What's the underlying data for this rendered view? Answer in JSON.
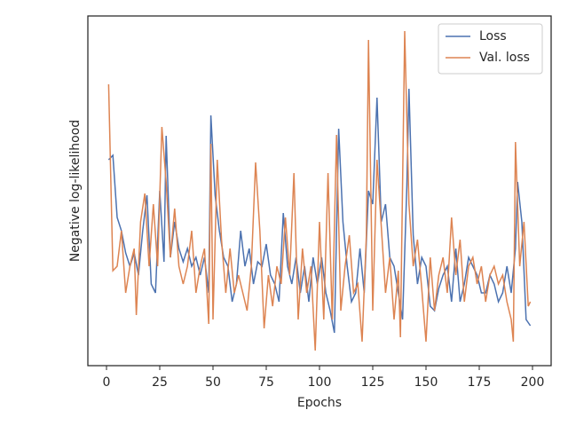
{
  "chart_data": {
    "type": "line",
    "xlabel": "Epochs",
    "ylabel": "Negative log-likelihood",
    "xlim": [
      -8.75,
      208.75
    ],
    "xticks": [
      0,
      25,
      50,
      75,
      100,
      125,
      150,
      175,
      200
    ],
    "ylim": [
      0,
      394
    ],
    "legend": "upper right",
    "series": [
      {
        "name": "Loss",
        "color": "#4c72b0",
        "x": [
          1,
          3,
          5,
          7,
          9,
          11,
          13,
          15,
          17,
          19,
          21,
          23,
          25,
          27,
          28,
          30,
          32,
          34,
          36,
          38,
          40,
          42,
          44,
          46,
          48,
          49,
          51,
          53,
          55,
          57,
          59,
          61,
          63,
          65,
          67,
          69,
          71,
          73,
          75,
          77,
          79,
          81,
          83,
          85,
          87,
          89,
          91,
          93,
          95,
          97,
          99,
          101,
          103,
          105,
          107,
          109,
          111,
          113,
          115,
          117,
          119,
          121,
          123,
          125,
          127,
          129,
          131,
          133,
          135,
          137,
          139,
          141,
          142,
          144,
          146,
          148,
          150,
          152,
          154,
          156,
          158,
          160,
          162,
          164,
          166,
          168,
          170,
          172,
          174,
          176,
          178,
          180,
          182,
          184,
          186,
          188,
          190,
          192,
          193,
          195,
          197,
          199
        ],
        "values": [
          232,
          237,
          167,
          152,
          127,
          112,
          127,
          102,
          152,
          192,
          92,
          82,
          197,
          117,
          259,
          122,
          162,
          132,
          117,
          132,
          112,
          122,
          102,
          122,
          82,
          282,
          192,
          152,
          122,
          112,
          72,
          92,
          152,
          112,
          132,
          92,
          117,
          112,
          137,
          102,
          92,
          72,
          172,
          112,
          92,
          122,
          82,
          112,
          72,
          122,
          92,
          122,
          82,
          62,
          37,
          267,
          162,
          112,
          72,
          82,
          132,
          82,
          197,
          182,
          302,
          162,
          182,
          122,
          112,
          82,
          52,
          202,
          312,
          147,
          92,
          122,
          112,
          67,
          62,
          87,
          102,
          112,
          72,
          132,
          72,
          92,
          122,
          112,
          102,
          82,
          82,
          102,
          92,
          72,
          82,
          112,
          82,
          132,
          207,
          162,
          52,
          45
        ]
      },
      {
        "name": "Val. loss",
        "color": "#dd8452",
        "x": [
          1,
          3,
          5,
          7,
          9,
          11,
          13,
          14,
          16,
          18,
          20,
          22,
          24,
          26,
          28,
          30,
          32,
          34,
          36,
          38,
          40,
          42,
          44,
          46,
          48,
          49,
          50,
          52,
          54,
          56,
          58,
          60,
          62,
          64,
          66,
          68,
          70,
          72,
          74,
          76,
          78,
          80,
          82,
          84,
          86,
          88,
          90,
          92,
          94,
          96,
          98,
          100,
          102,
          104,
          106,
          108,
          110,
          112,
          114,
          116,
          118,
          120,
          122,
          123,
          125,
          127,
          129,
          131,
          133,
          135,
          137,
          138,
          140,
          142,
          144,
          146,
          148,
          150,
          152,
          154,
          156,
          158,
          160,
          162,
          164,
          166,
          168,
          170,
          172,
          174,
          176,
          178,
          180,
          182,
          184,
          186,
          188,
          190,
          191,
          192,
          194,
          196,
          198,
          199
        ],
        "values": [
          317,
          107,
          112,
          152,
          82,
          112,
          132,
          57,
          162,
          194,
          112,
          182,
          112,
          269,
          207,
          122,
          177,
          112,
          92,
          112,
          152,
          82,
          112,
          132,
          47,
          250,
          52,
          232,
          142,
          82,
          132,
          82,
          102,
          82,
          62,
          112,
          229,
          152,
          42,
          102,
          67,
          112,
          92,
          167,
          102,
          217,
          52,
          132,
          82,
          112,
          17,
          162,
          52,
          217,
          52,
          260,
          62,
          112,
          147,
          82,
          92,
          27,
          147,
          367,
          62,
          232,
          157,
          82,
          122,
          52,
          107,
          32,
          377,
          182,
          112,
          142,
          87,
          27,
          122,
          62,
          102,
          122,
          82,
          167,
          102,
          142,
          72,
          112,
          122,
          92,
          112,
          72,
          102,
          112,
          92,
          102,
          72,
          52,
          27,
          252,
          112,
          162,
          67,
          72
        ]
      }
    ]
  }
}
